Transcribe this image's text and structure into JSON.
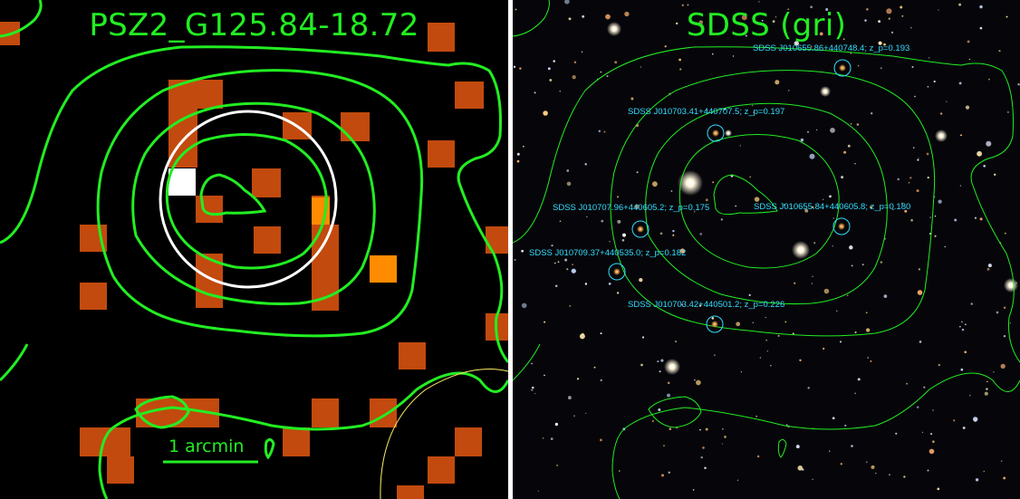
{
  "left_panel": {
    "title": "PSZ2_G125.84-18.72",
    "scale_bar_label": "1 arcmin"
  },
  "right_panel": {
    "title": "SDSS (gri)",
    "galaxies": [
      {
        "label": "SDSS J010655.86+440748.4; z_p=0.193"
      },
      {
        "label": "SDSS J010703.41+440707.5; z_p=0.197"
      },
      {
        "label": "SDSS J010707.96+440605.2; z_p=0.175"
      },
      {
        "label": "SDSS J010655.84+440605.8; z_p=0.180"
      },
      {
        "label": "SDSS J010709.37+440535.0; z_p=0.182"
      },
      {
        "label": "SDSS J010703.42+440501.2; z_p=0.226"
      }
    ]
  },
  "colors": {
    "contour": "#22ee22",
    "pixel_dark": "#c24a0e",
    "pixel_bright": "#ff8c00",
    "pixel_peak": "#ffffff",
    "ring": "#ffffff",
    "label": "#33ddff"
  }
}
